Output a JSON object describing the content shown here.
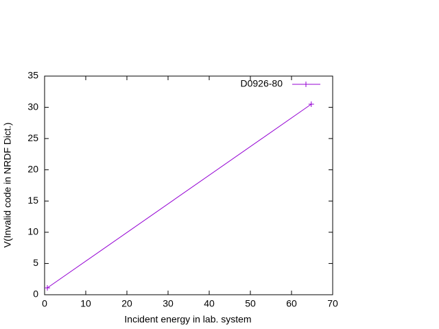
{
  "chart_data": {
    "type": "line",
    "xlabel": "Incident energy in lab. system",
    "ylabel": "V(Invalid code in NRDF Dict.)",
    "series": [
      {
        "name": "D0926-80",
        "color": "#9400d3",
        "x": [
          0.67,
          64.8
        ],
        "values": [
          1.1,
          30.5
        ]
      }
    ],
    "xlim": [
      0,
      70
    ],
    "xticks": [
      0,
      10,
      20,
      30,
      40,
      50,
      60,
      70
    ],
    "ylim": [
      0,
      35
    ],
    "yticks": [
      0,
      5,
      10,
      15,
      20,
      25,
      30,
      35
    ],
    "grid": false,
    "legend": "top-right"
  }
}
